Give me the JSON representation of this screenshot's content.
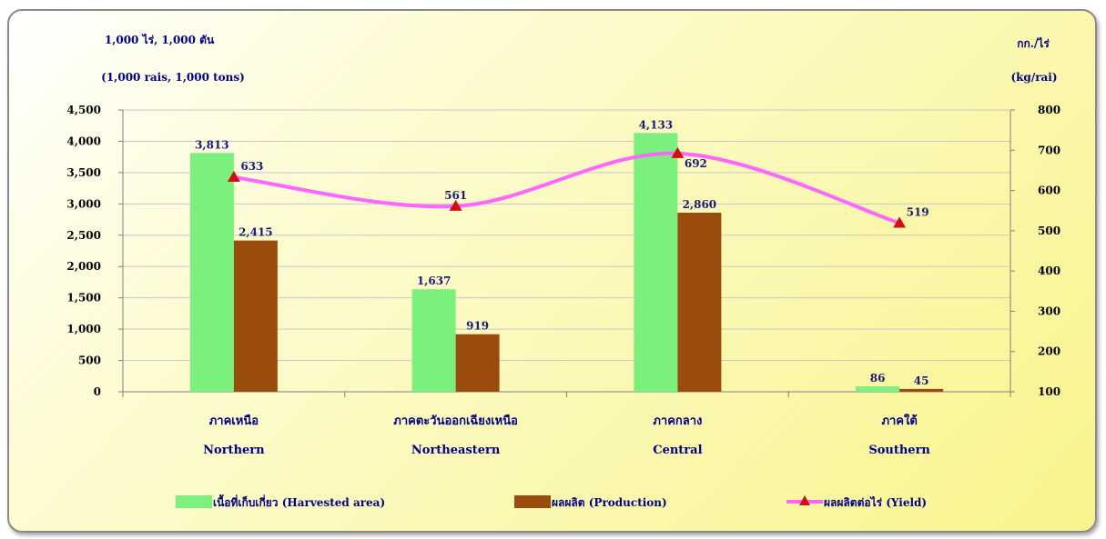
{
  "chart_data": {
    "type": "bar",
    "left_unit_line1": "1,000 ไร่,  1,000 ตัน",
    "left_unit_line2": "(1,000 rais,  1,000 tons)",
    "right_unit_line1": "กก./ไร่",
    "right_unit_line2": "(kg/rai)",
    "categories": [
      {
        "th": "ภาคเหนือ",
        "en": "Northern"
      },
      {
        "th": "ภาคตะวันออกเฉียงเหนือ",
        "en": "Northeastern"
      },
      {
        "th": "ภาคกลาง",
        "en": "Central"
      },
      {
        "th": "ภาคใต้",
        "en": "Southern"
      }
    ],
    "series": [
      {
        "name": "เนื้อที่เก็บเกี่ยว (Harvested area)",
        "kind": "bar",
        "axis": "left",
        "color": "#7cf07c",
        "values": [
          3813,
          1637,
          4133,
          86
        ],
        "labels": [
          "3,813",
          "1,637",
          "4,133",
          "86"
        ]
      },
      {
        "name": "ผลผลิต (Production)",
        "kind": "bar",
        "axis": "left",
        "color": "#994c0c",
        "values": [
          2415,
          919,
          2860,
          45
        ],
        "labels": [
          "2,415",
          "919",
          "2,860",
          "45"
        ]
      },
      {
        "name": "ผลผลิตต่อไร่ (Yield)",
        "kind": "line",
        "axis": "right",
        "color": "#ff66ff",
        "marker_color": "#d01010",
        "values": [
          633,
          561,
          692,
          519
        ],
        "labels": [
          "633",
          "561",
          "692",
          "519"
        ]
      }
    ],
    "left_axis": {
      "min": 0,
      "max": 4500,
      "step": 500,
      "ticks": [
        "0",
        "500",
        "1,000",
        "1,500",
        "2,000",
        "2,500",
        "3,000",
        "3,500",
        "4,000",
        "4,500"
      ]
    },
    "right_axis": {
      "min": 100,
      "max": 800,
      "step": 100,
      "ticks": [
        "100",
        "200",
        "300",
        "400",
        "500",
        "600",
        "700",
        "800"
      ]
    },
    "grid": true,
    "legend_position": "bottom"
  }
}
